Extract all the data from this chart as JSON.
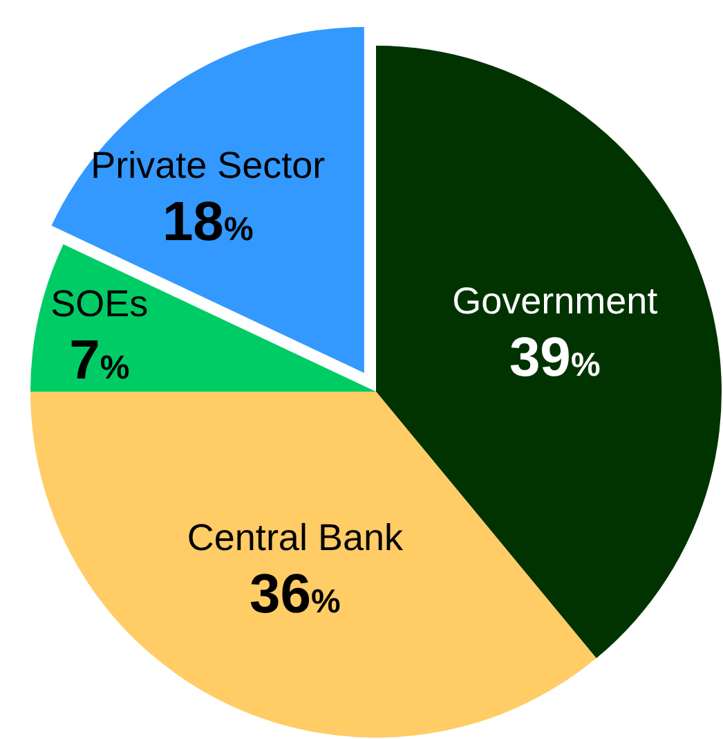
{
  "chart_data": {
    "type": "pie",
    "categories": [
      "Government",
      "Central Bank",
      "SOEs",
      "Private Sector"
    ],
    "values": [
      39,
      36,
      7,
      18
    ],
    "colors": [
      "#003300",
      "#ffcc66",
      "#00cc66",
      "#3399ff"
    ],
    "value_labels": [
      "39%",
      "36%",
      "7%",
      "18%"
    ]
  }
}
